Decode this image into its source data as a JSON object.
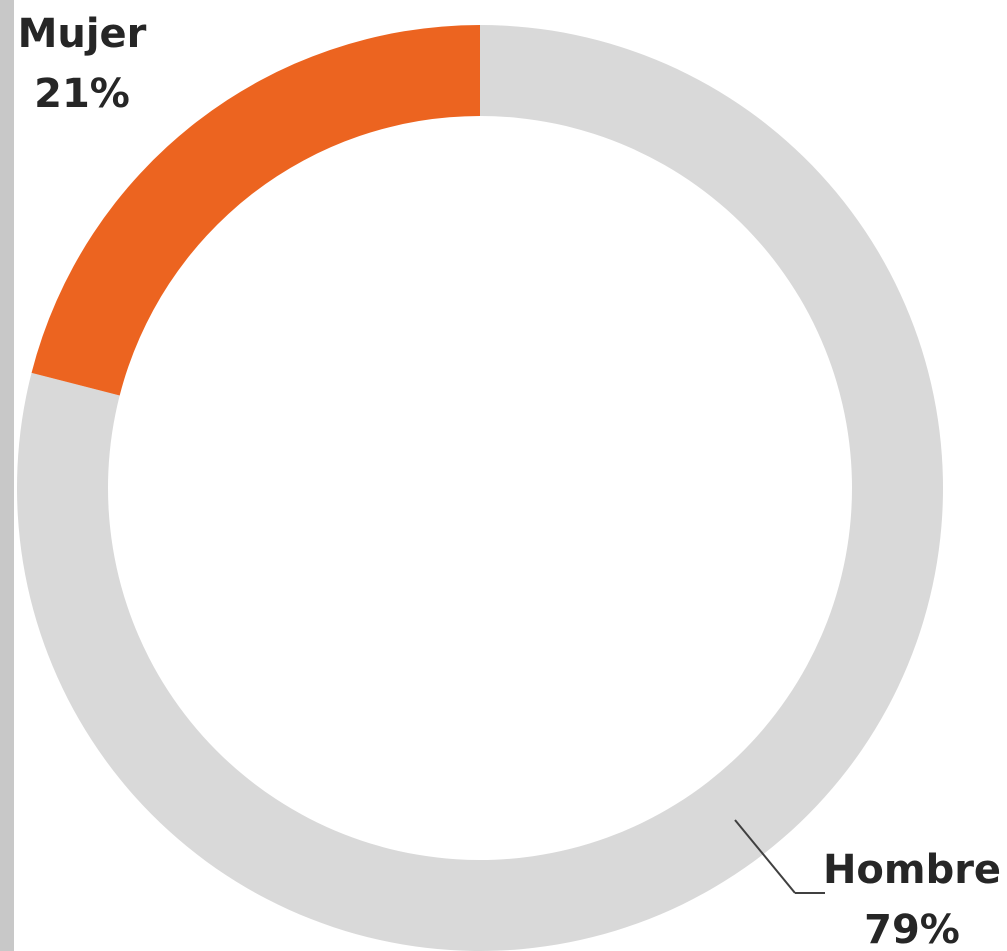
{
  "chart_data": {
    "type": "pie",
    "variant": "donut",
    "categories": [
      "Mujer",
      "Hombre"
    ],
    "values": [
      21,
      79
    ],
    "unit": "%",
    "data_labels": [
      {
        "name": "Mujer",
        "value": "21%"
      },
      {
        "name": "Hombre",
        "value": "79%"
      }
    ],
    "colors": {
      "Mujer": "#EC6420",
      "Hombre": "#D9D9D9"
    },
    "start": "top",
    "direction": "clockwise-from-Hombre",
    "legend": "none"
  }
}
